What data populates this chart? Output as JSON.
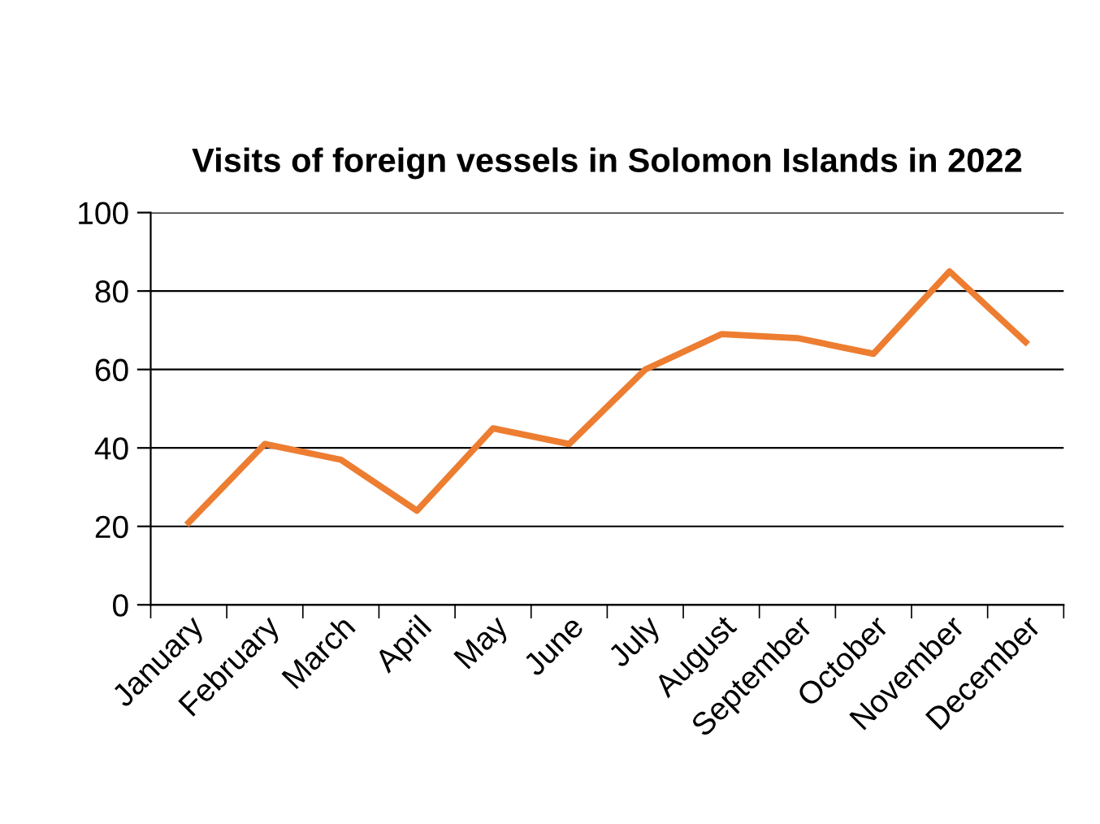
{
  "chart_data": {
    "type": "line",
    "title": "Visits of foreign vessels in Solomon Islands in 2022",
    "categories": [
      "January",
      "February",
      "March",
      "April",
      "May",
      "June",
      "July",
      "August",
      "September",
      "October",
      "November",
      "December"
    ],
    "series": [
      {
        "color": "#ed7d31",
        "values": [
          21,
          41,
          37,
          24,
          45,
          41,
          60,
          69,
          68,
          64,
          85,
          67
        ]
      }
    ],
    "ylim": [
      0,
      100
    ],
    "yticks": [
      0,
      20,
      40,
      60,
      80,
      100
    ],
    "grid": "y",
    "marker": "none",
    "line_style": "solid",
    "legend": false
  }
}
